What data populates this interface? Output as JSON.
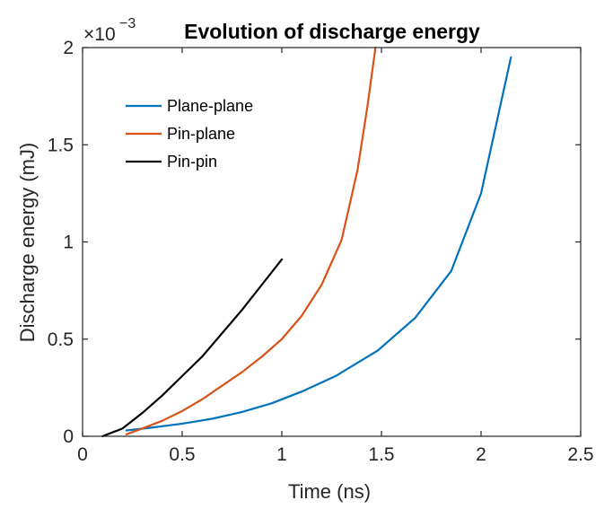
{
  "chart_data": {
    "type": "line",
    "title": "Evolution of discharge energy",
    "xlabel": "Time (ns)",
    "ylabel": "Discharge energy  (mJ)",
    "y_multiplier": {
      "base": "×10",
      "exponent": "−3"
    },
    "xlim": [
      0,
      2.5
    ],
    "ylim": [
      0,
      0.002
    ],
    "x_ticks": [
      0,
      0.5,
      1,
      1.5,
      2,
      2.5
    ],
    "x_tick_labels": [
      "0",
      "0.5",
      "1",
      "1.5",
      "2",
      "2.5"
    ],
    "y_ticks": [
      0,
      0.0005,
      0.001,
      0.0015,
      0.002
    ],
    "y_tick_labels": [
      "0",
      "0.5",
      "1",
      "1.5",
      "2"
    ],
    "grid": false,
    "legend_position": "top-left",
    "series": [
      {
        "name": "Plane-plane",
        "color": "#0072BD",
        "x": [
          0.22,
          0.35,
          0.5,
          0.65,
          0.8,
          0.95,
          1.1,
          1.27,
          1.48,
          1.67,
          1.85,
          2.0,
          2.15
        ],
        "y": [
          3e-05,
          4.5e-05,
          6.5e-05,
          9e-05,
          0.000125,
          0.00017,
          0.00023,
          0.00031,
          0.00044,
          0.00061,
          0.00085,
          0.00125,
          0.00195
        ]
      },
      {
        "name": "Pin-plane",
        "color": "#D95319",
        "x": [
          0.22,
          0.3,
          0.4,
          0.5,
          0.6,
          0.7,
          0.8,
          0.9,
          1.0,
          1.1,
          1.2,
          1.3,
          1.38,
          1.43,
          1.47
        ],
        "y": [
          1e-05,
          4e-05,
          8e-05,
          0.00013,
          0.00019,
          0.00026,
          0.00033,
          0.00041,
          0.0005,
          0.00062,
          0.00078,
          0.00101,
          0.00137,
          0.0017,
          0.002
        ]
      },
      {
        "name": "Pin-pin",
        "color": "#000000",
        "x": [
          0.1,
          0.2,
          0.3,
          0.4,
          0.5,
          0.6,
          0.7,
          0.8,
          0.9,
          1.0
        ],
        "y": [
          0.0,
          4e-05,
          0.00012,
          0.00021,
          0.00031,
          0.00041,
          0.00053,
          0.00065,
          0.00078,
          0.00091
        ]
      }
    ]
  }
}
